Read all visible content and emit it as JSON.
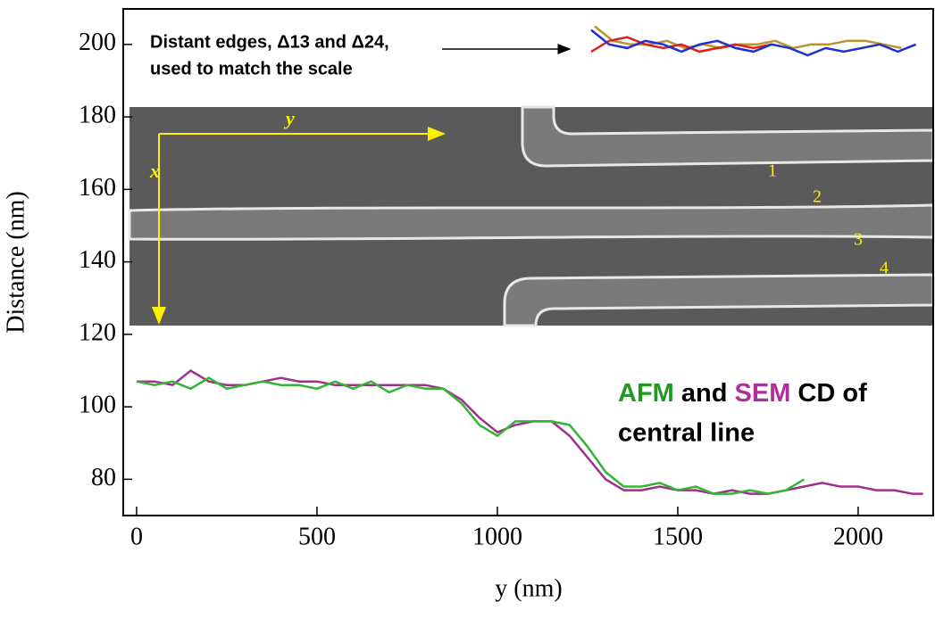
{
  "chart_data": {
    "type": "line",
    "x_label": "y (nm)",
    "y_label": "Distance (nm)",
    "xlim": [
      -37,
      2208
    ],
    "ylim": [
      70,
      209.8
    ],
    "xticks": [
      0,
      500,
      1000,
      1500,
      2000
    ],
    "yticks": [
      80,
      100,
      120,
      140,
      160,
      180,
      200
    ],
    "annotations": {
      "edges": [
        "Distant edges, Δ13 and Δ24,",
        "used to match the scale"
      ],
      "cd_line1": [
        {
          "text": "AFM",
          "color": "#1e9a1e"
        },
        {
          "text": "and",
          "color": "#000000"
        },
        {
          "text": "SEM",
          "color": "#b0309a"
        },
        {
          "text": "CD of",
          "color": "#000000"
        }
      ],
      "cd_line2": "central line",
      "image_axes": [
        "y",
        "x"
      ],
      "edge_numbers": [
        "1",
        "2",
        "3",
        "4"
      ]
    },
    "series": [
      {
        "name": "SEM",
        "color": "#a0308a",
        "x": [
          0,
          50,
          100,
          150,
          200,
          250,
          300,
          350,
          400,
          450,
          500,
          550,
          600,
          650,
          700,
          750,
          800,
          850,
          900,
          950,
          1000,
          1050,
          1100,
          1150,
          1200,
          1250,
          1300,
          1350,
          1400,
          1450,
          1500,
          1550,
          1600,
          1650,
          1700,
          1750,
          1800,
          1850,
          1900,
          1950,
          2000,
          2050,
          2100,
          2150,
          2180
        ],
        "values": [
          107,
          107,
          106,
          110,
          107,
          106,
          106,
          107,
          108,
          107,
          107,
          106,
          106,
          106,
          106,
          106,
          106,
          105,
          102,
          97,
          93,
          95,
          96,
          96,
          92,
          86,
          80,
          77,
          77,
          78,
          77,
          77,
          76,
          77,
          76,
          76,
          77,
          78,
          79,
          78,
          78,
          77,
          77,
          76,
          76
        ]
      },
      {
        "name": "AFM",
        "color": "#33b533",
        "x": [
          0,
          50,
          100,
          150,
          200,
          250,
          300,
          350,
          400,
          450,
          500,
          550,
          600,
          650,
          700,
          750,
          800,
          850,
          900,
          950,
          1000,
          1050,
          1100,
          1150,
          1200,
          1250,
          1300,
          1350,
          1400,
          1450,
          1500,
          1550,
          1600,
          1650,
          1700,
          1750,
          1800,
          1850
        ],
        "values": [
          107,
          106,
          107,
          105,
          108,
          105,
          106,
          107,
          106,
          106,
          105,
          107,
          105,
          107,
          104,
          106,
          105,
          105,
          101,
          95,
          92,
          96,
          96,
          96,
          95,
          89,
          82,
          78,
          78,
          79,
          77,
          78,
          76,
          76,
          77,
          76,
          77,
          80
        ]
      },
      {
        "color": "#b8962e",
        "x": [
          1270,
          1320,
          1370,
          1420,
          1470,
          1520,
          1570,
          1620,
          1670,
          1720,
          1770,
          1820,
          1870,
          1920,
          1970,
          2020,
          2070,
          2120
        ],
        "values": [
          205,
          201,
          200,
          200,
          201,
          199,
          200,
          199,
          200,
          200,
          201,
          199,
          200,
          200,
          201,
          201,
          200,
          199
        ]
      },
      {
        "color": "#e02020",
        "x": [
          1260,
          1310,
          1360,
          1410,
          1460,
          1510,
          1560,
          1610,
          1660,
          1710,
          1760
        ],
        "values": [
          198,
          201,
          202,
          200,
          199,
          200,
          198,
          199,
          200,
          199,
          200
        ]
      },
      {
        "color": "#2030d0",
        "x": [
          1260,
          1310,
          1360,
          1410,
          1460,
          1510,
          1560,
          1610,
          1660,
          1710,
          1760,
          1810,
          1860,
          1910,
          1960,
          2010,
          2060,
          2110,
          2160
        ],
        "values": [
          204,
          200,
          199,
          201,
          200,
          198,
          200,
          201,
          199,
          198,
          200,
          199,
          197,
          199,
          198,
          199,
          200,
          198,
          200
        ]
      }
    ]
  }
}
